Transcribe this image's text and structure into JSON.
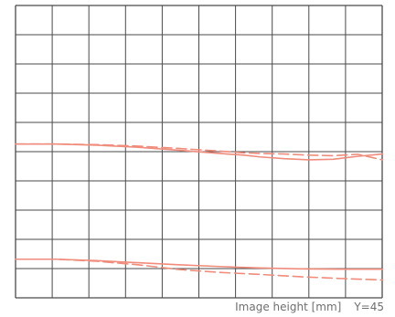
{
  "chart_data": {
    "type": "line",
    "xlabel": "Image height [mm]",
    "annotation": "Y=45",
    "xlim": [
      0,
      45
    ],
    "ylim": [
      0,
      10
    ],
    "x_divisions": 10,
    "y_divisions": 10,
    "grid": true,
    "colors": {
      "grid": "#4a4a4a",
      "series": "#f08c7c"
    },
    "series": [
      {
        "style": "solid",
        "x": [
          0,
          5,
          10,
          15,
          20,
          25,
          28,
          30,
          33,
          36,
          39,
          42,
          45
        ],
        "y": [
          5.26,
          5.26,
          5.22,
          5.15,
          5.05,
          4.94,
          4.88,
          4.82,
          4.76,
          4.72,
          4.74,
          4.84,
          4.92
        ]
      },
      {
        "style": "dashed",
        "x": [
          0,
          5,
          10,
          15,
          20,
          25,
          28,
          30,
          33,
          36,
          39,
          42,
          45
        ],
        "y": [
          5.26,
          5.26,
          5.24,
          5.19,
          5.11,
          5.02,
          4.96,
          4.94,
          4.92,
          4.88,
          4.86,
          4.91,
          4.72
        ]
      },
      {
        "style": "solid",
        "x": [
          0,
          5,
          10,
          15,
          20,
          25,
          30,
          35,
          40,
          45
        ],
        "y": [
          1.32,
          1.32,
          1.27,
          1.2,
          1.13,
          1.07,
          1.02,
          0.99,
          0.98,
          0.98
        ]
      },
      {
        "style": "dashed",
        "x": [
          0,
          5,
          10,
          15,
          20,
          25,
          30,
          35,
          40,
          45
        ],
        "y": [
          1.32,
          1.32,
          1.25,
          1.13,
          0.97,
          0.87,
          0.8,
          0.72,
          0.66,
          0.61
        ]
      }
    ]
  }
}
